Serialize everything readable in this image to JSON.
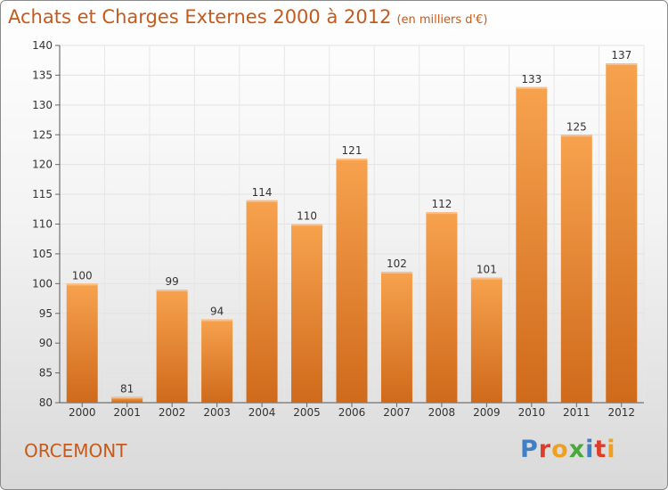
{
  "header": {
    "title": "Achats et Charges Externes 2000 à 2012",
    "subtitle": "(en milliers d'€)"
  },
  "footer": {
    "commune": "ORCEMONT",
    "logo": "Proxiti"
  },
  "colors": {
    "bar_light": "#f7a24e",
    "bar_dark": "#cf6a1b",
    "accent": "#c75a1a",
    "logo_letters": [
      "#3f7fc6",
      "#e03c2a",
      "#f0a020",
      "#4aa83a",
      "#3f7fc6",
      "#e03c2a",
      "#f0a020"
    ]
  },
  "chart_data": {
    "type": "bar",
    "title": "Achats et Charges Externes 2000 à 2012",
    "subtitle": "(en milliers d'€)",
    "categories": [
      "2000",
      "2001",
      "2002",
      "2003",
      "2004",
      "2005",
      "2006",
      "2007",
      "2008",
      "2009",
      "2010",
      "2011",
      "2012"
    ],
    "values": [
      100,
      81,
      99,
      94,
      114,
      110,
      121,
      102,
      112,
      101,
      133,
      125,
      137
    ],
    "ylim": [
      80,
      140
    ],
    "yticks": [
      80,
      85,
      90,
      95,
      100,
      105,
      110,
      115,
      120,
      125,
      130,
      135,
      140
    ],
    "grid": true,
    "xlabel": "",
    "ylabel": ""
  }
}
